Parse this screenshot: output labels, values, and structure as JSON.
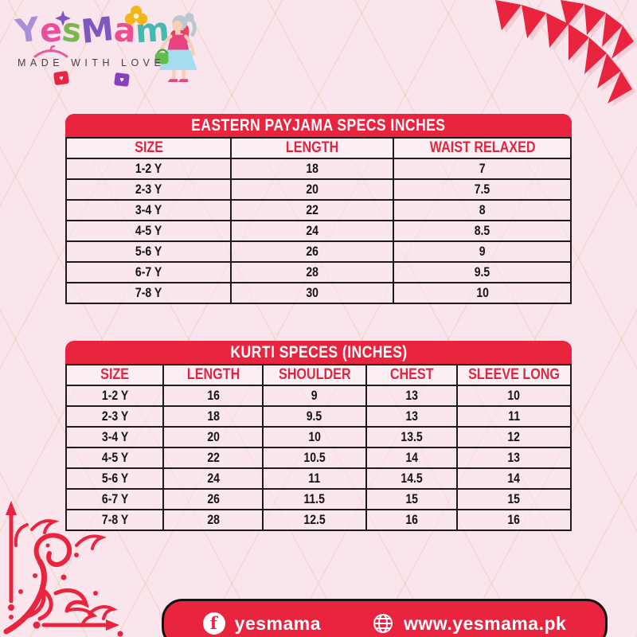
{
  "brand": {
    "name": "YesMama",
    "letters": [
      {
        "ch": "Y",
        "color": "#a98fd6"
      },
      {
        "ch": "e",
        "color": "#e8509d"
      },
      {
        "ch": "s",
        "color": "#79b94c"
      },
      {
        "ch": "M",
        "color": "#7f57c2"
      },
      {
        "ch": "a",
        "color": "#ee4d92"
      },
      {
        "ch": "m",
        "color": "#45b8b0"
      },
      {
        "ch": "a",
        "color": "#e8435c"
      }
    ],
    "tagline": "MADE WITH LOVE"
  },
  "chart_data": [
    {
      "type": "table",
      "title": "EASTERN PAYJAMA SPECS INCHES",
      "columns": [
        "SIZE",
        "LENGTH",
        "WAIST RELAXED"
      ],
      "rows": [
        [
          "1-2 Y",
          "18",
          "7"
        ],
        [
          "2-3 Y",
          "20",
          "7.5"
        ],
        [
          "3-4 Y",
          "22",
          "8"
        ],
        [
          "4-5 Y",
          "24",
          "8.5"
        ],
        [
          "5-6 Y",
          "26",
          "9"
        ],
        [
          "6-7 Y",
          "28",
          "9.5"
        ],
        [
          "7-8 Y",
          "30",
          "10"
        ]
      ]
    },
    {
      "type": "table",
      "title": "KURTI SPECES (INCHES)",
      "columns": [
        "SIZE",
        "LENGTH",
        "SHOULDER",
        "CHEST",
        "SLEEVE LONG"
      ],
      "rows": [
        [
          "1-2 Y",
          "16",
          "9",
          "13",
          "10"
        ],
        [
          "2-3 Y",
          "18",
          "9.5",
          "13",
          "11"
        ],
        [
          "3-4 Y",
          "20",
          "10",
          "13.5",
          "12"
        ],
        [
          "4-5 Y",
          "22",
          "10.5",
          "14",
          "13"
        ],
        [
          "5-6 Y",
          "24",
          "11",
          "14.5",
          "14"
        ],
        [
          "6-7 Y",
          "26",
          "11.5",
          "15",
          "15"
        ],
        [
          "7-8 Y",
          "28",
          "12.5",
          "16",
          "16"
        ]
      ]
    }
  ],
  "footer": {
    "facebook_label": "yesmama",
    "website": "www.yesmama.pk"
  },
  "colors": {
    "accent_red": "#e8243f",
    "page_bg": "#fae5ed",
    "cell_bg": "#f9e6ee",
    "header_text": "#e02540",
    "border": "#1d1b1c"
  },
  "icons": {
    "facebook": "f-in-white-circle",
    "globe": "globe-grid",
    "star": "purple-star",
    "flower": "yellow-flower",
    "hanger": "pink-hanger",
    "gift_bags": "heart-gift-bags",
    "bunting": "red-triangle-flags",
    "corner": "red-flourish-with-arrows"
  }
}
